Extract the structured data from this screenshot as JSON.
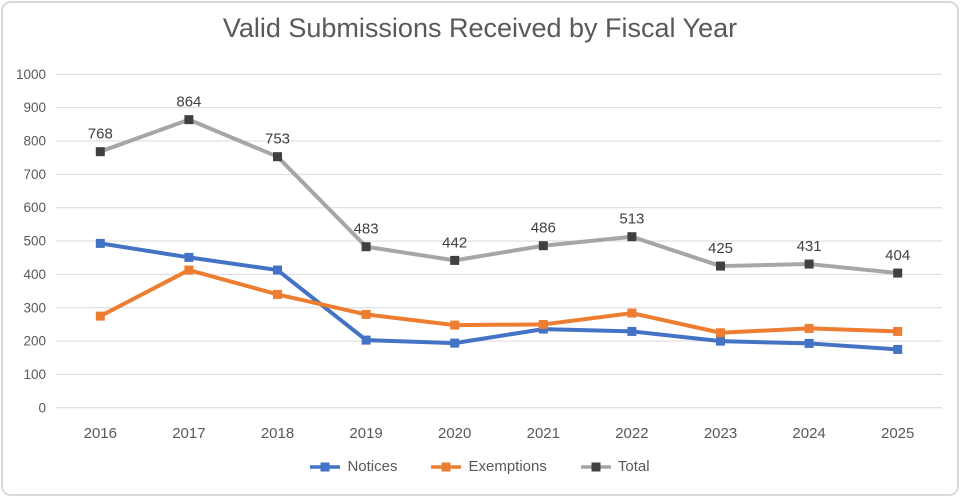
{
  "title": "Valid Submissions Received by Fiscal Year",
  "chart_data": {
    "type": "line",
    "categories": [
      "2016",
      "2017",
      "2018",
      "2019",
      "2020",
      "2021",
      "2022",
      "2023",
      "2024",
      "2025"
    ],
    "yticks": [
      "0",
      "100",
      "200",
      "300",
      "400",
      "500",
      "600",
      "700",
      "800",
      "900",
      "1000"
    ],
    "ylim": [
      0,
      1000
    ],
    "xlabel": "",
    "ylabel": "",
    "grid": true,
    "legend_position": "bottom",
    "grid_color": "#D9D9D9",
    "tick_color": "#595959",
    "label_color": "#404040",
    "series": [
      {
        "name": "Notices",
        "color": "#4472C4",
        "marker": "square",
        "data_labels": false,
        "values": [
          493,
          451,
          413,
          203,
          194,
          236,
          229,
          200,
          193,
          175
        ]
      },
      {
        "name": "Exemptions",
        "color": "#ED7D31",
        "marker": "square",
        "data_labels": false,
        "values": [
          275,
          413,
          340,
          280,
          248,
          250,
          284,
          225,
          238,
          229
        ]
      },
      {
        "name": "Total",
        "color": "#A6A6A6",
        "marker_color": "#404040",
        "marker": "square",
        "data_labels": true,
        "values": [
          768,
          864,
          753,
          483,
          442,
          486,
          513,
          425,
          431,
          404
        ]
      }
    ]
  }
}
